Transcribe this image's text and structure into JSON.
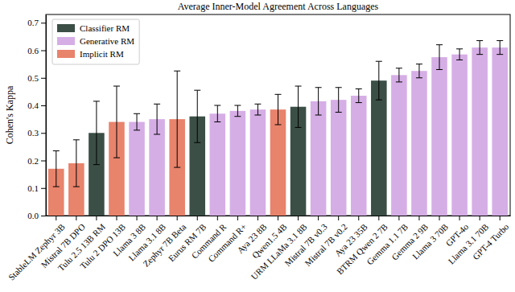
{
  "chart_data": {
    "type": "bar",
    "title": "Average Inner-Model Agreement Across Languages",
    "y_label": "Cohen's Kappa",
    "categories": [
      "StableLM Zephyr 3B",
      "Mistral 7B DPO",
      "Tulu 2.5 13B RM",
      "Tulu 2 DPO 13B",
      "Llama 3 8B",
      "Llama 3.1 8B",
      "Zephyr 7B Beta",
      "Eurus RM 7B",
      "Command R",
      "Command R+",
      "Aya 23 8B",
      "Qwen1.5 4B",
      "URM LLaMa 3.1 8B",
      "Mistral 7B v0.3",
      "Mistral 7B v0.2",
      "Aya 23 35B",
      "BTRM Qwen 2 7B",
      "Gemma 1.1 7B",
      "Gemma 2 9B",
      "Llama 3 70B",
      "GPT-4o",
      "Llama 3.1 70B",
      "GPT-4 Turbo"
    ],
    "series": [
      {
        "name": "Classifier RM",
        "color": "#3b4f46",
        "values": [
          null,
          null,
          0.3,
          null,
          null,
          null,
          null,
          0.36,
          null,
          null,
          null,
          null,
          0.395,
          null,
          null,
          null,
          0.49,
          null,
          null,
          null,
          null,
          null,
          null
        ],
        "error": [
          null,
          null,
          0.115,
          null,
          null,
          null,
          null,
          0.095,
          null,
          null,
          null,
          null,
          0.075,
          null,
          null,
          null,
          0.07,
          null,
          null,
          null,
          null,
          null,
          null
        ]
      },
      {
        "name": "Generative RM",
        "color": "#d6aee6",
        "values": [
          null,
          null,
          null,
          null,
          0.34,
          0.35,
          null,
          null,
          0.37,
          0.38,
          0.385,
          null,
          null,
          0.415,
          0.42,
          0.435,
          null,
          0.51,
          0.525,
          0.575,
          0.585,
          0.61,
          0.61
        ],
        "error": [
          null,
          null,
          null,
          null,
          0.03,
          0.055,
          null,
          null,
          0.03,
          0.02,
          0.02,
          null,
          null,
          0.05,
          0.045,
          0.025,
          null,
          0.025,
          0.025,
          0.045,
          0.02,
          0.025,
          0.025
        ]
      },
      {
        "name": "Implicit RM",
        "color": "#e8836c",
        "values": [
          0.17,
          0.19,
          null,
          0.34,
          null,
          null,
          0.35,
          null,
          null,
          null,
          null,
          0.385,
          null,
          null,
          null,
          null,
          null,
          null,
          null,
          null,
          null,
          null,
          null
        ],
        "error": [
          0.065,
          0.085,
          null,
          0.13,
          null,
          null,
          0.175,
          null,
          null,
          null,
          null,
          0.055,
          null,
          null,
          null,
          null,
          null,
          null,
          null,
          null,
          null,
          null,
          null
        ]
      }
    ],
    "ylim": [
      0,
      0.73
    ],
    "yticks": [
      {
        "value": 0,
        "label": "0.0"
      },
      0.1,
      0.2,
      0.3,
      0.4,
      0.5,
      0.6,
      0.7
    ],
    "grid": false,
    "legend": "upper left"
  }
}
